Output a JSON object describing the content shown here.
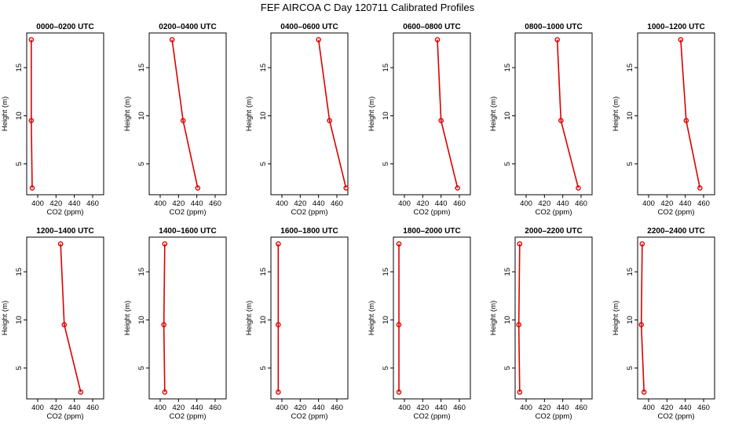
{
  "title": "FEF AIRCOA C  Day 120711  Calibrated Profiles",
  "colors": {
    "line": "#dd0000",
    "axis": "#000000"
  },
  "chart_data": {
    "type": "line",
    "xlabel": "CO2 (ppm)",
    "ylabel": "Height (m)",
    "xlim": [
      388,
      472
    ],
    "ylim": [
      1.8,
      18.6
    ],
    "xticks": [
      "400",
      "420",
      "440",
      "460"
    ],
    "yticks": [
      "5",
      "10",
      "15"
    ],
    "heights": [
      2.5,
      9.5,
      17.9
    ],
    "panels": [
      {
        "title": "0000–0200 UTC",
        "co2": [
          394,
          393,
          393
        ]
      },
      {
        "title": "0200–0400 UTC",
        "co2": [
          441,
          425,
          413
        ]
      },
      {
        "title": "0400–0600 UTC",
        "co2": [
          470,
          452,
          440
        ]
      },
      {
        "title": "0600–0800 UTC",
        "co2": [
          458,
          440,
          436
        ]
      },
      {
        "title": "0800–1000 UTC",
        "co2": [
          457,
          438,
          434
        ]
      },
      {
        "title": "1000–1200 UTC",
        "co2": [
          456,
          441,
          435
        ]
      },
      {
        "title": "1200–1400 UTC",
        "co2": [
          447,
          429,
          425
        ]
      },
      {
        "title": "1400–1600 UTC",
        "co2": [
          405,
          404,
          405
        ]
      },
      {
        "title": "1600–1800 UTC",
        "co2": [
          396,
          396,
          396
        ]
      },
      {
        "title": "1800–2000 UTC",
        "co2": [
          394,
          394,
          394
        ]
      },
      {
        "title": "2000–2200 UTC",
        "co2": [
          393,
          392,
          393
        ]
      },
      {
        "title": "2200–2400 UTC",
        "co2": [
          395,
          392,
          393
        ]
      }
    ]
  }
}
